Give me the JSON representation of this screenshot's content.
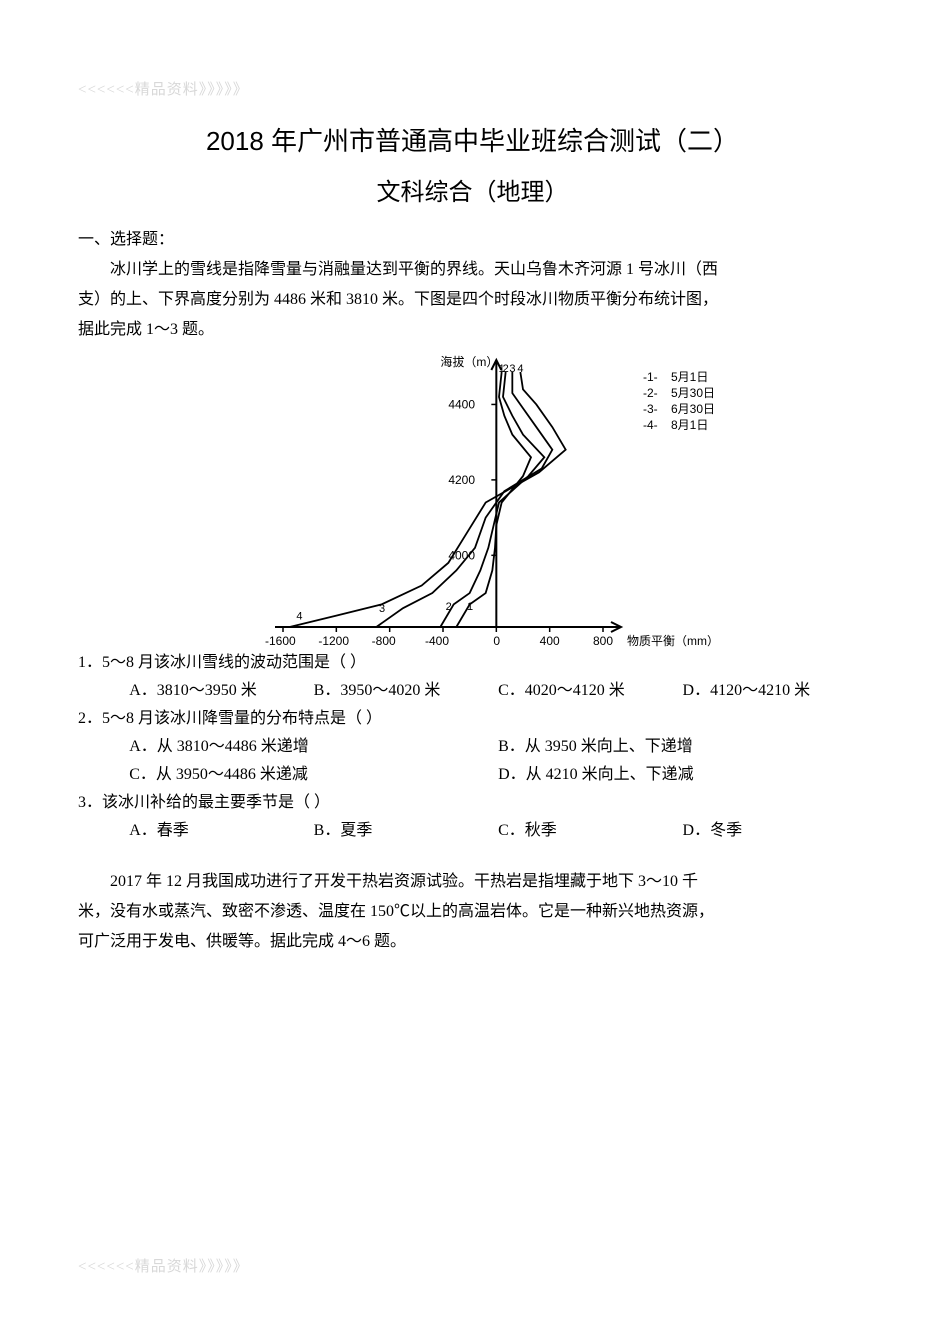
{
  "header_watermark": "<<<<<<精品资料》》》》》",
  "footer_watermark": "<<<<<<精品资料》》》》》",
  "title_line1": "2018 年广州市普通高中毕业班综合测试（二）",
  "title_line2": "文科综合（地理）",
  "section1_heading": "一、选择题：",
  "intro_para1_l1": "冰川学上的雪线是指降雪量与消融量达到平衡的界线。天山乌鲁木齐河源 1 号冰川（西",
  "intro_para1_l2": "支）的上、下界高度分别为 4486 米和 3810 米。下图是四个时段冰川物质平衡分布统计图，",
  "intro_para1_l3": "据此完成 1～3 题。",
  "chart": {
    "type": "line",
    "y_axis_label": "海拔（m）",
    "x_axis_label": "物质平衡（mm）",
    "x_lim": [
      -1600,
      800
    ],
    "x_ticks": [
      -1600,
      -1200,
      -800,
      -400,
      0,
      400,
      800
    ],
    "y_lim": [
      3810,
      4486
    ],
    "y_ticks": [
      4000,
      4200,
      4400
    ],
    "line_color": "#000000",
    "bg_color": "#ffffff",
    "legend": [
      {
        "key": "-1-",
        "label": "5月1日"
      },
      {
        "key": "-2-",
        "label": "5月30日"
      },
      {
        "key": "-3-",
        "label": "6月30日"
      },
      {
        "key": "-4-",
        "label": "8月1日"
      }
    ],
    "top_labels": [
      "1",
      "2",
      "3",
      "4"
    ],
    "series": {
      "1": [
        [
          -300,
          3810
        ],
        [
          -200,
          3870
        ],
        [
          -80,
          3900
        ],
        [
          -30,
          3960
        ],
        [
          -10,
          4020
        ],
        [
          0,
          4080
        ],
        [
          40,
          4140
        ],
        [
          200,
          4210
        ],
        [
          260,
          4260
        ],
        [
          120,
          4320
        ],
        [
          60,
          4370
        ],
        [
          20,
          4420
        ],
        [
          40,
          4486
        ]
      ],
      "2": [
        [
          -420,
          3810
        ],
        [
          -320,
          3870
        ],
        [
          -200,
          3900
        ],
        [
          -120,
          3960
        ],
        [
          -60,
          4020
        ],
        [
          -20,
          4080
        ],
        [
          20,
          4140
        ],
        [
          240,
          4210
        ],
        [
          360,
          4260
        ],
        [
          200,
          4320
        ],
        [
          120,
          4370
        ],
        [
          50,
          4420
        ],
        [
          70,
          4486
        ]
      ],
      "3": [
        [
          -900,
          3810
        ],
        [
          -700,
          3860
        ],
        [
          -480,
          3900
        ],
        [
          -300,
          3960
        ],
        [
          -160,
          4020
        ],
        [
          -80,
          4100
        ],
        [
          60,
          4170
        ],
        [
          340,
          4230
        ],
        [
          420,
          4280
        ],
        [
          300,
          4340
        ],
        [
          200,
          4390
        ],
        [
          120,
          4430
        ],
        [
          120,
          4486
        ]
      ],
      "4": [
        [
          -1550,
          3810
        ],
        [
          -1200,
          3840
        ],
        [
          -860,
          3870
        ],
        [
          -560,
          3920
        ],
        [
          -360,
          3980
        ],
        [
          -220,
          4060
        ],
        [
          -80,
          4140
        ],
        [
          320,
          4220
        ],
        [
          520,
          4280
        ],
        [
          420,
          4340
        ],
        [
          300,
          4400
        ],
        [
          200,
          4440
        ],
        [
          180,
          4486
        ]
      ]
    }
  },
  "q1": {
    "prompt": "1．5～8 月该冰川雪线的波动范围是（    ）",
    "A": "A．3810～3950 米",
    "B": "B．3950～4020 米",
    "C": "C．4020～4120 米",
    "D": "D．4120～4210 米"
  },
  "q2": {
    "prompt": "2．5～8 月该冰川降雪量的分布特点是（    ）",
    "A": "A．从 3810～4486 米递增",
    "B": "B．从 3950 米向上、下递增",
    "C": "C．从 3950～4486 米递减",
    "D": "D．从 4210 米向上、下递减"
  },
  "q3": {
    "prompt": "3．该冰川补给的最主要季节是（    ）",
    "A": "A．春季",
    "B": "B．夏季",
    "C": "C．秋季",
    "D": "D．冬季"
  },
  "para2_l1": "2017 年 12 月我国成功进行了开发干热岩资源试验。干热岩是指埋藏于地下 3～10 千",
  "para2_l2": "米，没有水或蒸汽、致密不渗透、温度在 150℃以上的高温岩体。它是一种新兴地热资源，",
  "para2_l3": "可广泛用于发电、供暖等。据此完成 4～6 题。"
}
